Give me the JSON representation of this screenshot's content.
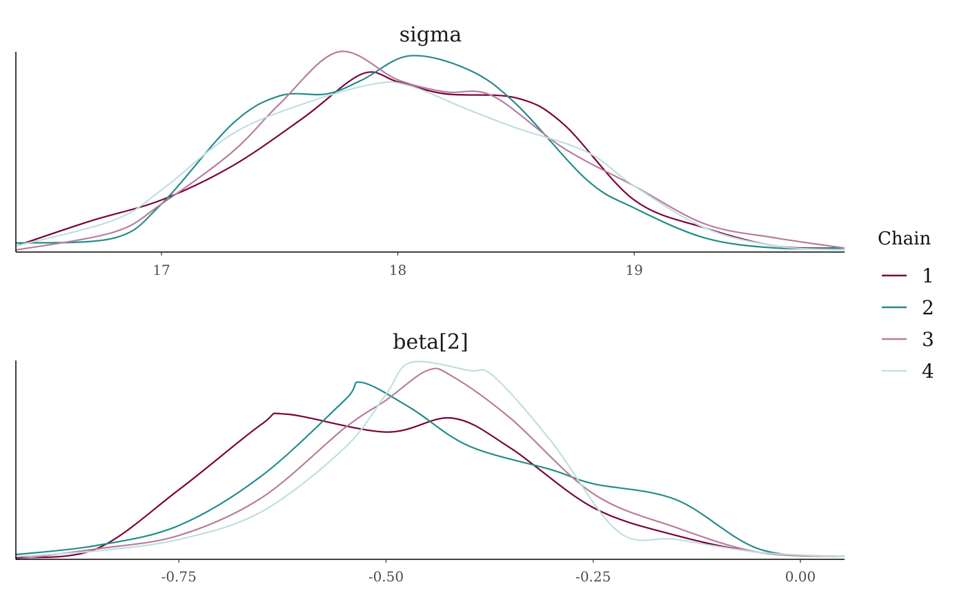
{
  "chart_data": [
    {
      "type": "line",
      "title": "sigma",
      "xlabel": "",
      "ylabel": "",
      "xlim": [
        16.384,
        19.89
      ],
      "ylim": [
        0,
        1
      ],
      "y_units": "relative density",
      "xticks": [
        17,
        18,
        19
      ],
      "xtick_labels": [
        "17",
        "18",
        "19"
      ],
      "grid": false,
      "series": [
        {
          "name": "1",
          "x": [
            16.384,
            16.7,
            17,
            17.3,
            17.6,
            17.85,
            18,
            18.2,
            18.5,
            18.7,
            19,
            19.3,
            19.6,
            19.89
          ],
          "y": [
            0.03,
            0.155,
            0.26,
            0.43,
            0.67,
            0.89,
            0.85,
            0.79,
            0.77,
            0.64,
            0.26,
            0.12,
            0.03,
            0.02
          ]
        },
        {
          "name": "2",
          "x": [
            16.384,
            16.8,
            17,
            17.3,
            17.5,
            17.7,
            17.85,
            18.05,
            18.3,
            18.5,
            18.8,
            19,
            19.3,
            19.6,
            19.89
          ],
          "y": [
            0.045,
            0.07,
            0.24,
            0.64,
            0.78,
            0.79,
            0.86,
            0.98,
            0.91,
            0.74,
            0.36,
            0.22,
            0.07,
            0.02,
            0.02
          ]
        },
        {
          "name": "3",
          "x": [
            16.384,
            16.8,
            17,
            17.3,
            17.5,
            17.75,
            18,
            18.2,
            18.4,
            18.7,
            19,
            19.3,
            19.6,
            19.89
          ],
          "y": [
            0.01,
            0.1,
            0.24,
            0.5,
            0.74,
            1.0,
            0.86,
            0.8,
            0.78,
            0.52,
            0.33,
            0.14,
            0.07,
            0.02
          ]
        },
        {
          "name": "4",
          "x": [
            16.384,
            16.8,
            17,
            17.3,
            17.6,
            17.9,
            18.05,
            18.3,
            18.5,
            18.8,
            19,
            19.3,
            19.6,
            19.89
          ],
          "y": [
            0.03,
            0.16,
            0.31,
            0.59,
            0.74,
            0.84,
            0.83,
            0.71,
            0.62,
            0.5,
            0.33,
            0.12,
            0.03,
            0.01
          ]
        }
      ]
    },
    {
      "type": "line",
      "title": "beta[2]",
      "xlabel": "",
      "ylabel": "",
      "xlim": [
        -0.9467,
        0.0533
      ],
      "ylim": [
        0,
        1
      ],
      "y_units": "relative density",
      "xticks": [
        -0.75,
        -0.5,
        -0.25,
        0
      ],
      "xtick_labels": [
        "-0.75",
        "-0.50",
        "-0.25",
        "0.00"
      ],
      "grid": false,
      "series": [
        {
          "name": "1",
          "x": [
            -0.9467,
            -0.85,
            -0.75,
            -0.65,
            -0.62,
            -0.5,
            -0.42,
            -0.35,
            -0.25,
            -0.15,
            -0.05,
            0.0533
          ],
          "y": [
            0.007,
            0.052,
            0.35,
            0.68,
            0.73,
            0.64,
            0.71,
            0.56,
            0.26,
            0.12,
            0.035,
            0.014
          ]
        },
        {
          "name": "2",
          "x": [
            -0.9467,
            -0.85,
            -0.75,
            -0.65,
            -0.55,
            -0.53,
            -0.47,
            -0.4,
            -0.3,
            -0.25,
            -0.15,
            -0.05,
            0.0533
          ],
          "y": [
            0.024,
            0.069,
            0.17,
            0.42,
            0.8,
            0.89,
            0.76,
            0.57,
            0.45,
            0.38,
            0.3,
            0.052,
            0.014
          ]
        },
        {
          "name": "3",
          "x": [
            -0.9467,
            -0.85,
            -0.75,
            -0.65,
            -0.55,
            -0.5,
            -0.45,
            -0.42,
            -0.35,
            -0.25,
            -0.15,
            -0.05,
            0.0533
          ],
          "y": [
            0.0,
            0.052,
            0.12,
            0.31,
            0.66,
            0.8,
            0.95,
            0.92,
            0.71,
            0.33,
            0.16,
            0.035,
            0.014
          ]
        },
        {
          "name": "4",
          "x": [
            -0.9467,
            -0.85,
            -0.75,
            -0.65,
            -0.55,
            -0.5,
            -0.47,
            -0.4,
            -0.37,
            -0.3,
            -0.22,
            -0.15,
            -0.05,
            0.0533
          ],
          "y": [
            0.014,
            0.042,
            0.1,
            0.24,
            0.56,
            0.83,
            0.99,
            0.95,
            0.92,
            0.59,
            0.14,
            0.1,
            0.035,
            0.014
          ]
        }
      ]
    }
  ],
  "legend": {
    "title": "Chain",
    "placement": "right",
    "items": [
      {
        "label": "1",
        "color": "#7a0038"
      },
      {
        "label": "2",
        "color": "#238b8b"
      },
      {
        "label": "3",
        "color": "#b87c9b"
      },
      {
        "label": "4",
        "color": "#bfdfdf"
      }
    ]
  }
}
